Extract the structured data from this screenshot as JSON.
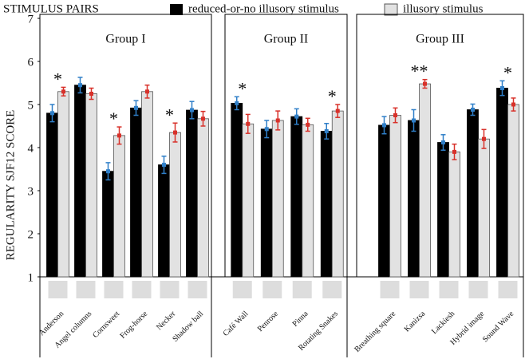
{
  "chart_data": {
    "type": "bar",
    "legend_title": "STIMULUS PAIRS",
    "ylabel": "REGULARITY  SJF12  SCORE",
    "ylim": [
      1,
      7
    ],
    "yticks": [
      1,
      2,
      3,
      4,
      5,
      6,
      7
    ],
    "series": [
      {
        "name": "reduced-or-no illusory stimulus",
        "color": "#000000",
        "error_color": "#2f7fc8"
      },
      {
        "name": "illusory stimulus",
        "color": "#e2e2e2",
        "error_color": "#d8312a"
      }
    ],
    "groups": [
      {
        "title": "Group I",
        "categories": [
          "Anderson",
          "Angel columns",
          "Cornsweet",
          "Frog-horse",
          "Necker",
          "Shadow ball"
        ],
        "series": [
          {
            "values": [
              4.8,
              5.45,
              3.45,
              4.92,
              3.6,
              4.87
            ],
            "errors": [
              0.2,
              0.18,
              0.2,
              0.17,
              0.2,
              0.2
            ]
          },
          {
            "values": [
              5.3,
              5.25,
              4.28,
              5.3,
              4.35,
              4.67
            ],
            "errors": [
              0.1,
              0.13,
              0.2,
              0.15,
              0.22,
              0.17
            ]
          }
        ],
        "annotations": [
          "*",
          null,
          "*",
          null,
          "*",
          null
        ]
      },
      {
        "title": "Group II",
        "categories": [
          "Café Wall",
          "Penrose",
          "Pinna",
          "Rotating Snakes"
        ],
        "series": [
          {
            "values": [
              5.03,
              4.43,
              4.72,
              4.38
            ],
            "errors": [
              0.15,
              0.2,
              0.18,
              0.18
            ]
          },
          {
            "values": [
              4.55,
              4.63,
              4.53,
              4.85
            ],
            "errors": [
              0.22,
              0.22,
              0.15,
              0.15
            ]
          }
        ],
        "annotations": [
          "*",
          null,
          null,
          "*"
        ]
      },
      {
        "title": "Group III",
        "categories": [
          "Breathing square",
          "Kanizsa",
          "Lackiesh",
          "Hybrid image",
          "Sound Wave"
        ],
        "series": [
          {
            "values": [
              4.52,
              4.63,
              4.12,
              4.88,
              5.38
            ],
            "errors": [
              0.2,
              0.25,
              0.18,
              0.13,
              0.17
            ]
          },
          {
            "values": [
              4.75,
              5.48,
              3.9,
              4.2,
              5.0
            ],
            "errors": [
              0.17,
              0.1,
              0.18,
              0.22,
              0.15
            ]
          }
        ],
        "annotations": [
          null,
          "**",
          null,
          null,
          "*"
        ]
      }
    ]
  }
}
